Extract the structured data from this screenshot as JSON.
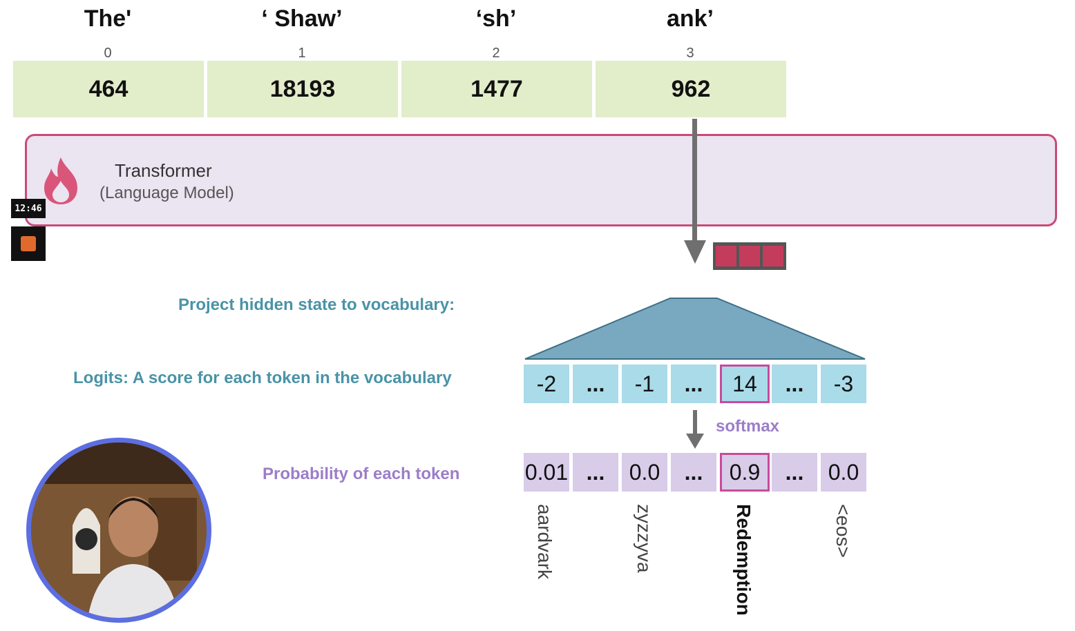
{
  "tokens": [
    {
      "text": "The'",
      "index": "0",
      "id": "464"
    },
    {
      "text": "‘  Shaw’",
      "index": "1",
      "id": "18193"
    },
    {
      "text": "‘sh’",
      "index": "2",
      "id": "1477"
    },
    {
      "text": "ank’",
      "index": "3",
      "id": "962"
    }
  ],
  "transformer": {
    "title": "Transformer",
    "subtitle": "(Language Model)",
    "icon": "flame-icon",
    "border_color": "#c94a77"
  },
  "recording": {
    "timer": "12:46",
    "stop_icon": "stop-icon"
  },
  "labels": {
    "project": "Project hidden state to vocabulary:",
    "logits": "Logits: A score for each token in the vocabulary",
    "probability": "Probability of each token",
    "softmax": "softmax"
  },
  "logits": [
    "-2",
    "...",
    "-1",
    "...",
    "14",
    "...",
    "-3"
  ],
  "probabilities": [
    "0.01",
    "...",
    "0.0",
    "...",
    "0.9",
    "...",
    "0.0"
  ],
  "vocabulary": [
    "aardvark",
    "zyzzyva",
    "Redemption",
    "<eos>"
  ],
  "colors": {
    "token_id_bg": "#e2edca",
    "logit_bg": "#a9dbe9",
    "prob_bg": "#d8cce9",
    "highlight": "#c94a9b",
    "projection": "#79a9c0"
  }
}
